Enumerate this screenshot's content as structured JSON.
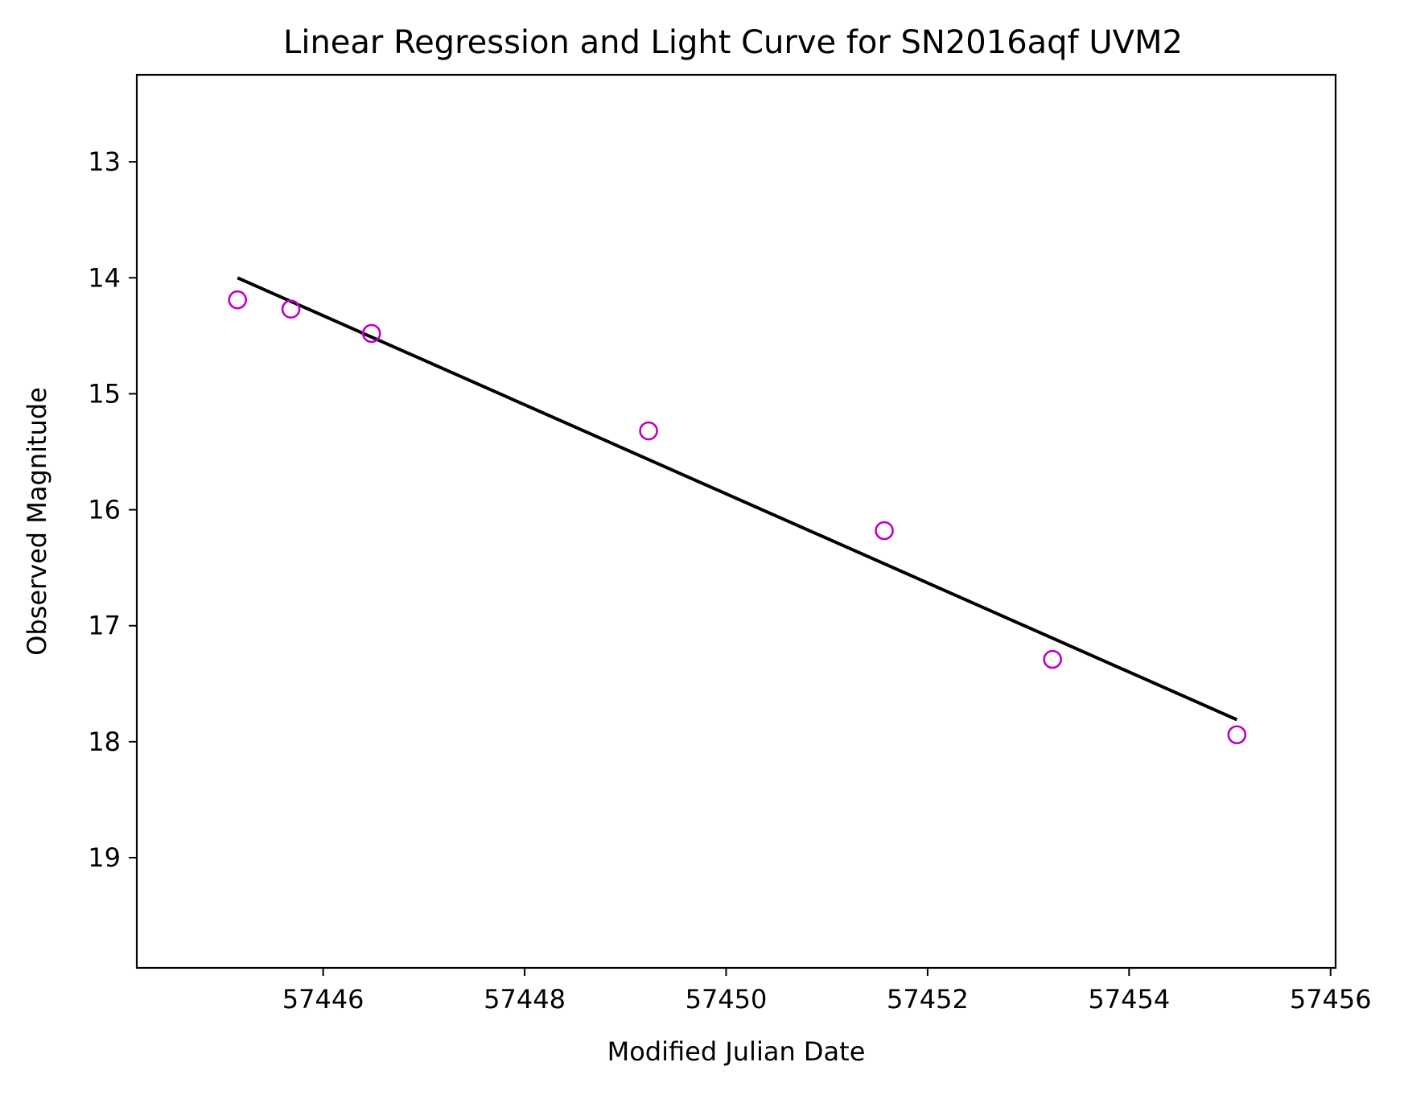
{
  "chart_data": {
    "type": "scatter",
    "title": "Linear Regression and Light Curve for SN2016aqf UVM2",
    "xlabel": "Modified Julian Date",
    "ylabel": "Observed Magnitude",
    "xlim": [
      57444.15,
      57456.05
    ],
    "ylim": [
      19.95,
      12.25
    ],
    "y_inverted": true,
    "grid": false,
    "xticks": [
      57446,
      57448,
      57450,
      57452,
      57454,
      57456
    ],
    "yticks": [
      13,
      14,
      15,
      16,
      17,
      18,
      19
    ],
    "series": [
      {
        "marker": "open-circle",
        "color": "#bf00bf",
        "x": [
          57445.15,
          57445.68,
          57446.48,
          57449.23,
          57451.57,
          57453.24,
          57455.07
        ],
        "y": [
          14.19,
          14.27,
          14.48,
          15.32,
          16.18,
          17.29,
          17.94
        ]
      },
      {
        "line": "solid",
        "color": "#000000",
        "x": [
          57445.15,
          57455.07
        ],
        "y": [
          14.0,
          17.81
        ]
      }
    ]
  }
}
